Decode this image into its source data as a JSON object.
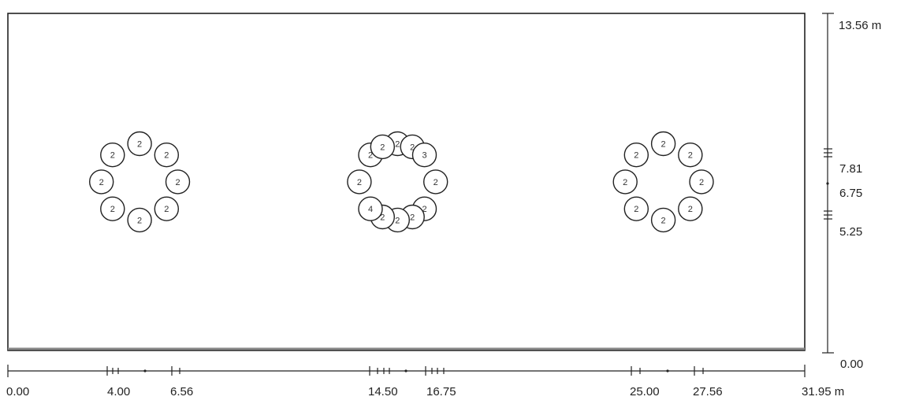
{
  "plan": {
    "length_m": 31.95,
    "width_m": 13.56,
    "unit": "m"
  },
  "x_axis": {
    "labels": [
      "0.00",
      "4.00",
      "6.56",
      "14.50",
      "16.75",
      "25.00",
      "27.56",
      "31.95 m"
    ]
  },
  "y_axis": {
    "labels": [
      "13.56 m",
      "7.81",
      "6.75",
      "5.25",
      "0.00"
    ]
  },
  "pile_groups": [
    {
      "name": "group-left",
      "center": {
        "x_m": 5.28,
        "y_m": 6.75
      },
      "ring_radius_m": 1.53,
      "piles": [
        {
          "angle": 90,
          "label": "2"
        },
        {
          "angle": 45,
          "label": "2"
        },
        {
          "angle": 0,
          "label": "2"
        },
        {
          "angle": -45,
          "label": "2"
        },
        {
          "angle": -90,
          "label": "2"
        },
        {
          "angle": -135,
          "label": "2"
        },
        {
          "angle": 180,
          "label": "2"
        },
        {
          "angle": 135,
          "label": "2"
        }
      ]
    },
    {
      "name": "group-middle",
      "center": {
        "x_m": 15.62,
        "y_m": 6.75
      },
      "ring_radius_m": 1.53,
      "piles": [
        {
          "angle": 90,
          "label": "2"
        },
        {
          "angle": 67,
          "label": "2"
        },
        {
          "angle": 45,
          "label": "3"
        },
        {
          "angle": 0,
          "label": "2"
        },
        {
          "angle": -45,
          "label": "2"
        },
        {
          "angle": -67,
          "label": "2"
        },
        {
          "angle": -90,
          "label": "2"
        },
        {
          "angle": -113,
          "label": "2"
        },
        {
          "angle": -135,
          "label": "4"
        },
        {
          "angle": 180,
          "label": "2"
        },
        {
          "angle": 135,
          "label": "2"
        },
        {
          "angle": 113,
          "label": "2"
        }
      ]
    },
    {
      "name": "group-right",
      "center": {
        "x_m": 26.28,
        "y_m": 6.75
      },
      "ring_radius_m": 1.53,
      "piles": [
        {
          "angle": 90,
          "label": "2"
        },
        {
          "angle": 45,
          "label": "2"
        },
        {
          "angle": 0,
          "label": "2"
        },
        {
          "angle": -45,
          "label": "2"
        },
        {
          "angle": -90,
          "label": "2"
        },
        {
          "angle": -135,
          "label": "2"
        },
        {
          "angle": 180,
          "label": "2"
        },
        {
          "angle": 135,
          "label": "2"
        }
      ]
    }
  ]
}
